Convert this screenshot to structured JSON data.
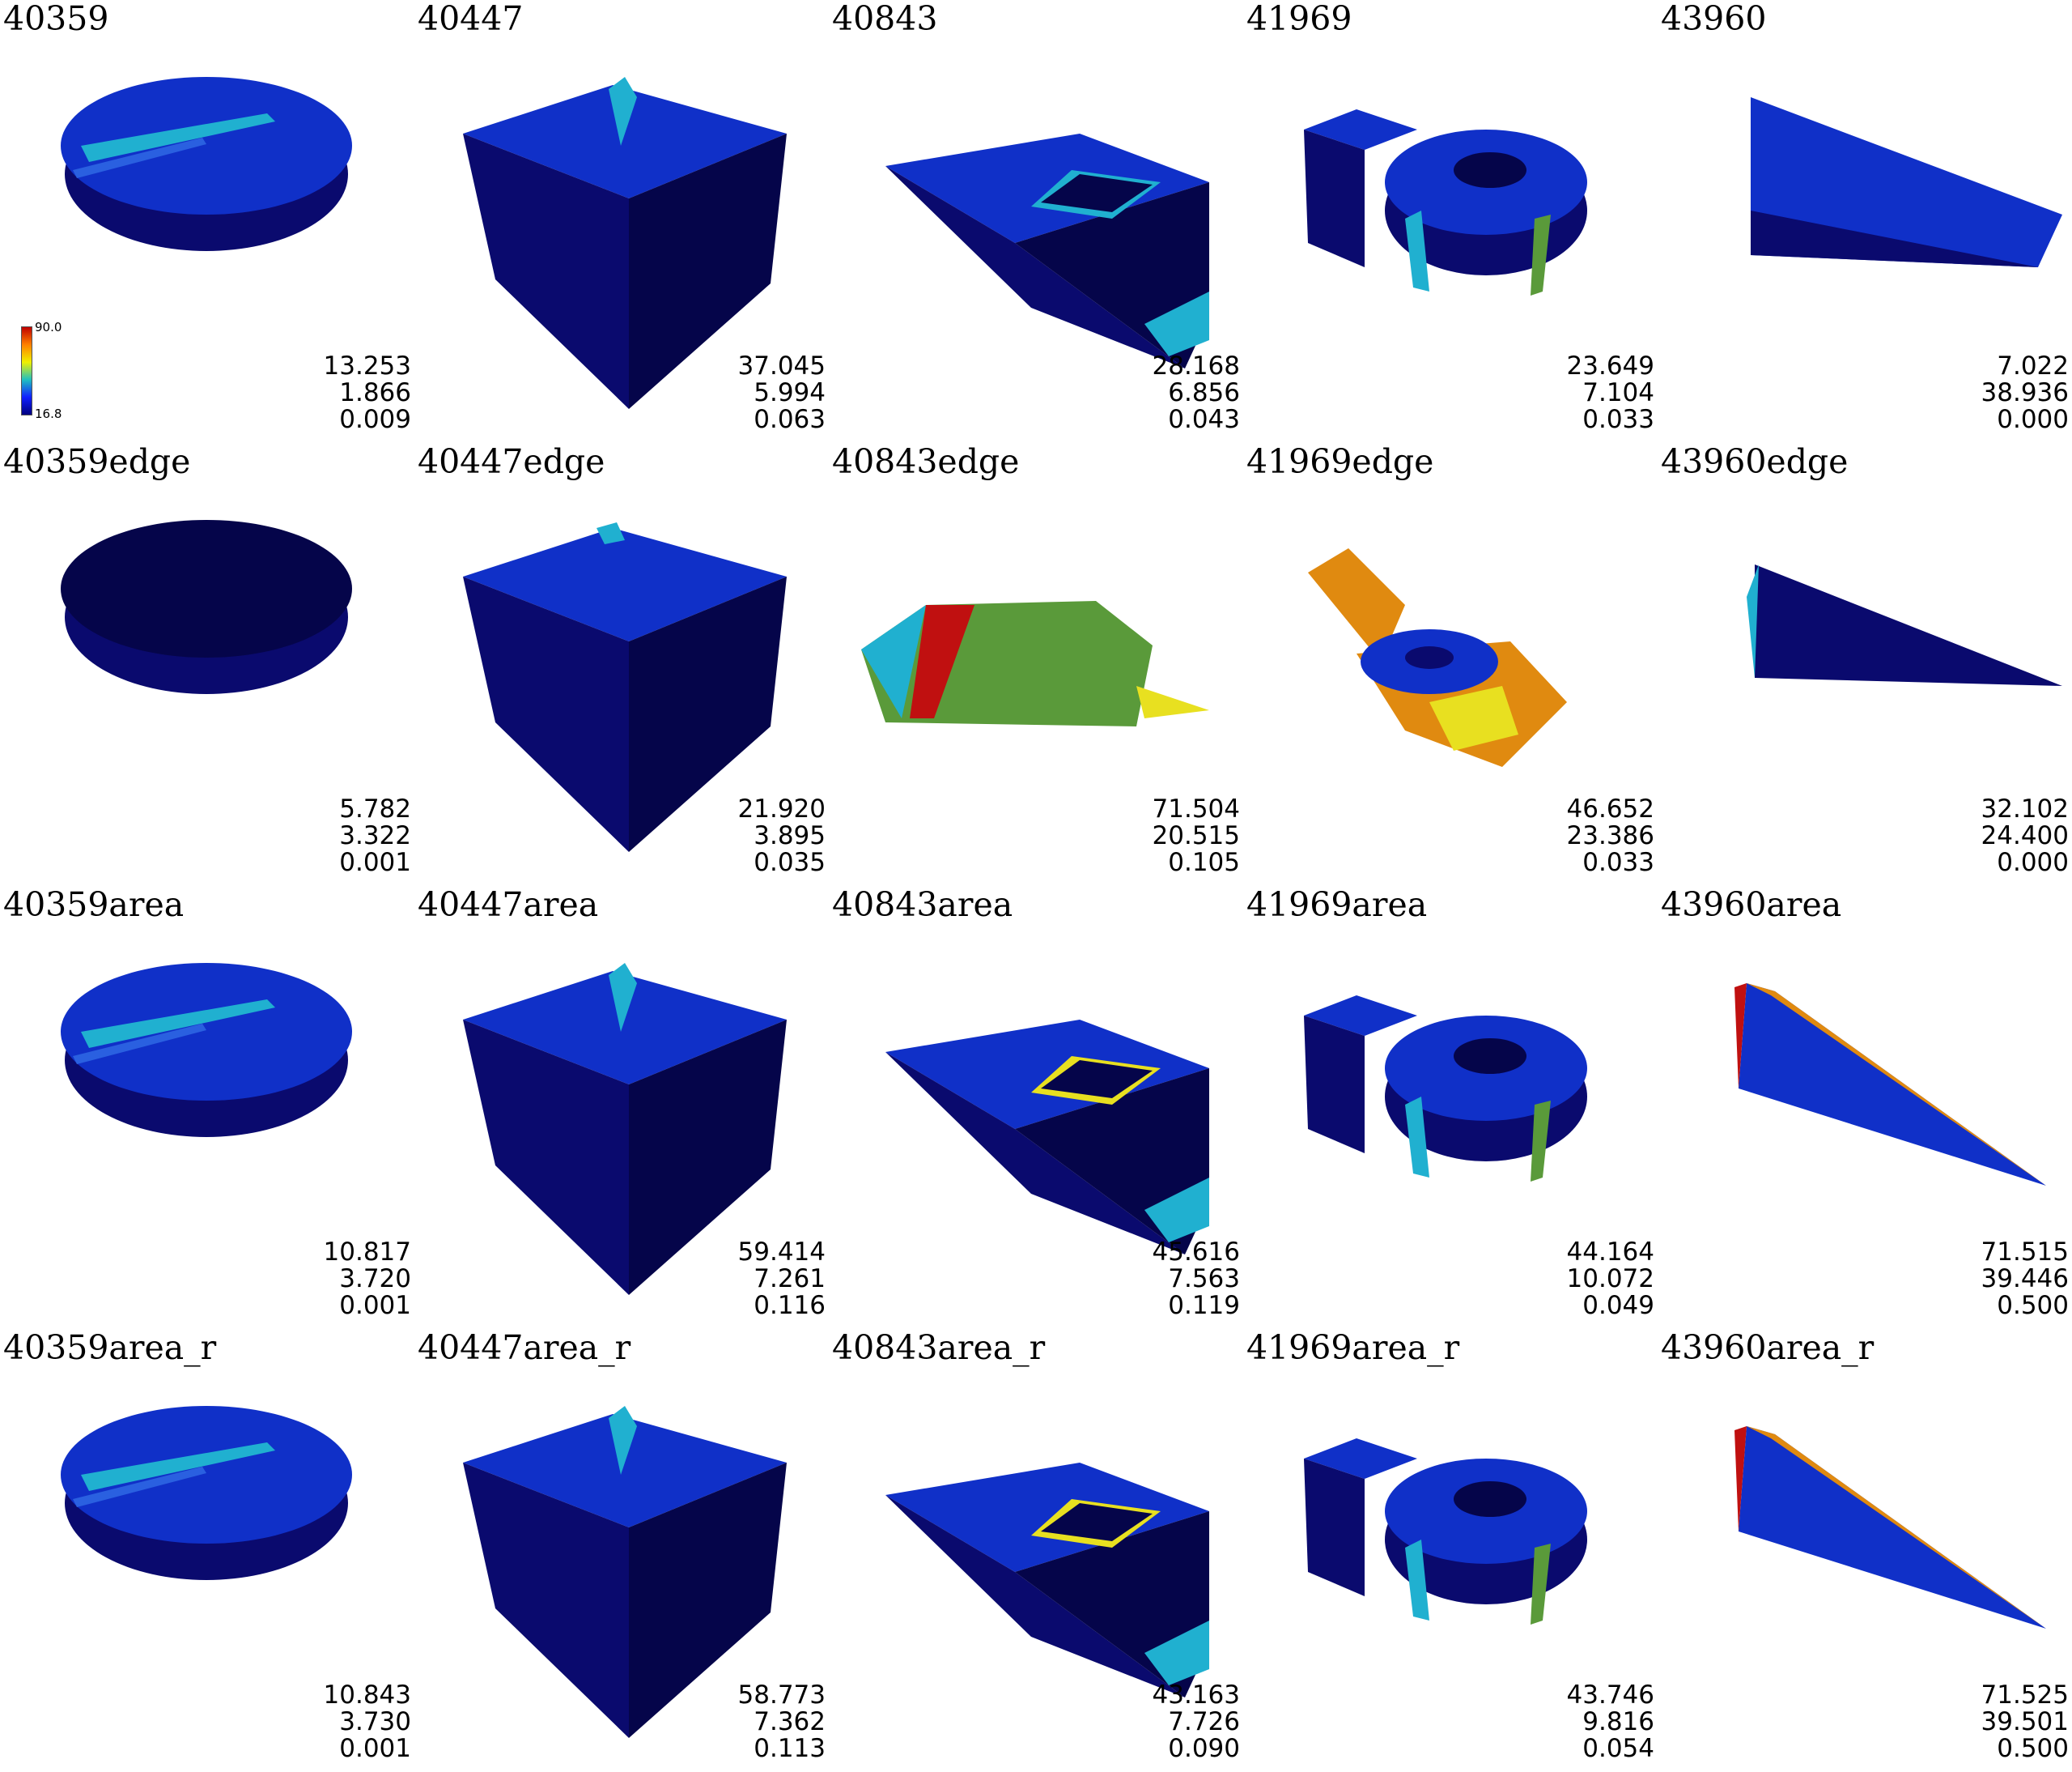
{
  "colorbar": {
    "max_label": "90.0",
    "min_label": "16.8"
  },
  "rows": [
    {
      "suffix": "",
      "cells": [
        {
          "title": "40359",
          "shape": "bowl",
          "stats": [
            "13.253",
            "1.866",
            "0.009"
          ]
        },
        {
          "title": "40447",
          "shape": "cube",
          "stats": [
            "37.045",
            "5.994",
            "0.063"
          ]
        },
        {
          "title": "40843",
          "shape": "tray",
          "stats": [
            "28.168",
            "6.856",
            "0.043"
          ]
        },
        {
          "title": "41969",
          "shape": "blocks",
          "stats": [
            "23.649",
            "7.104",
            "0.033"
          ]
        },
        {
          "title": "43960",
          "shape": "wedge",
          "stats": [
            "7.022",
            "38.936",
            "0.000"
          ]
        }
      ]
    },
    {
      "suffix": "edge",
      "cells": [
        {
          "title": "40359edge",
          "shape": "bowl",
          "stats": [
            "5.782",
            "3.322",
            "0.001"
          ]
        },
        {
          "title": "40447edge",
          "shape": "cube",
          "stats": [
            "21.920",
            "3.895",
            "0.035"
          ]
        },
        {
          "title": "40843edge",
          "shape": "tray",
          "stats": [
            "71.504",
            "20.515",
            "0.105"
          ]
        },
        {
          "title": "41969edge",
          "shape": "blocks",
          "stats": [
            "46.652",
            "23.386",
            "0.033"
          ]
        },
        {
          "title": "43960edge",
          "shape": "wedge",
          "stats": [
            "32.102",
            "24.400",
            "0.000"
          ]
        }
      ]
    },
    {
      "suffix": "area",
      "cells": [
        {
          "title": "40359area",
          "shape": "bowl",
          "stats": [
            "10.817",
            "3.720",
            "0.001"
          ]
        },
        {
          "title": "40447area",
          "shape": "cube",
          "stats": [
            "59.414",
            "7.261",
            "0.116"
          ]
        },
        {
          "title": "40843area",
          "shape": "tray",
          "stats": [
            "45.616",
            "7.563",
            "0.119"
          ]
        },
        {
          "title": "41969area",
          "shape": "blocks",
          "stats": [
            "44.164",
            "10.072",
            "0.049"
          ]
        },
        {
          "title": "43960area",
          "shape": "wedge",
          "stats": [
            "71.515",
            "39.446",
            "0.500"
          ]
        }
      ]
    },
    {
      "suffix": "area_r",
      "cells": [
        {
          "title": "40359area_r",
          "shape": "bowl",
          "stats": [
            "10.843",
            "3.730",
            "0.001"
          ]
        },
        {
          "title": "40447area_r",
          "shape": "cube",
          "stats": [
            "58.773",
            "7.362",
            "0.113"
          ]
        },
        {
          "title": "40843area_r",
          "shape": "tray",
          "stats": [
            "43.163",
            "7.726",
            "0.090"
          ]
        },
        {
          "title": "41969area_r",
          "shape": "blocks",
          "stats": [
            "43.746",
            "9.816",
            "0.054"
          ]
        },
        {
          "title": "43960area_r",
          "shape": "wedge",
          "stats": [
            "71.525",
            "39.501",
            "0.500"
          ]
        }
      ]
    }
  ],
  "colors": {
    "navy": "#0a0a6e",
    "dark": "#05054a",
    "blue": "#1030c8",
    "cyan": "#20b0d0",
    "green": "#5a9a3a",
    "orange": "#e08a10",
    "yellow": "#e8e020",
    "red": "#c01010"
  }
}
